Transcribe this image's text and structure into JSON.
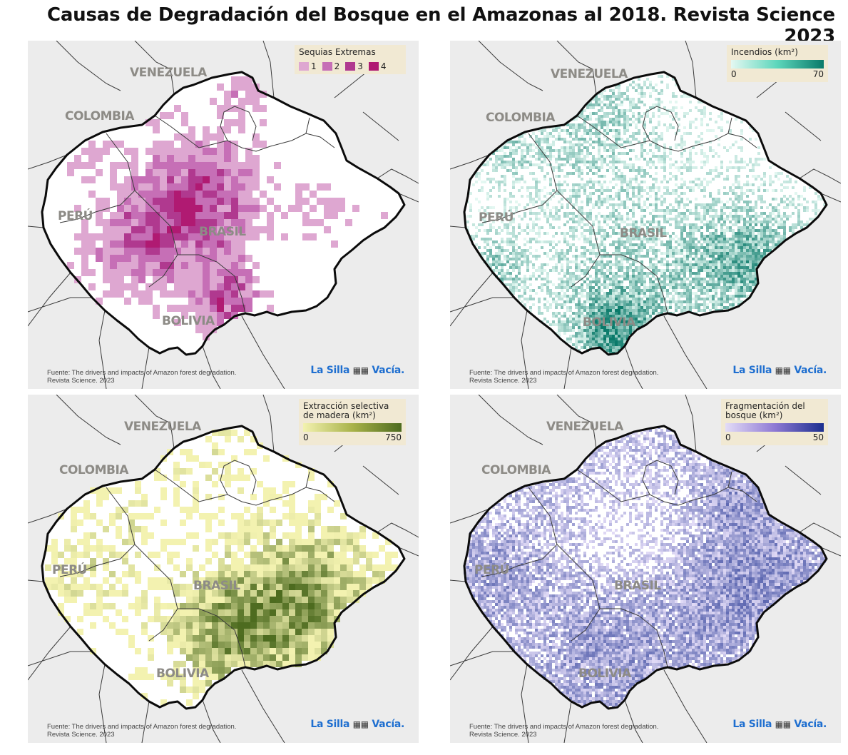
{
  "title": "Causas de Degradación del Bosque en el Amazonas al 2018. Revista Science 2023",
  "countries": {
    "venezuela": "VENEZUELA",
    "colombia": "COLOMBIA",
    "peru": "PERÚ",
    "brasil": "BRASIL",
    "bolivia": "BOLIVIA"
  },
  "source": {
    "line1": "Fuente: The drivers and impacts of Amazon forest degradation.",
    "line2": "Revista Science. 2023"
  },
  "brand": {
    "pre": "La Silla",
    "post": "Vacía.",
    "icon": "chairs-icon"
  },
  "panels": {
    "droughts": {
      "legend_title": "Sequias Extremas",
      "classes": [
        "1",
        "2",
        "3",
        "4"
      ],
      "colors": [
        "#dea7d1",
        "#c66fb6",
        "#b0398f",
        "#b01a72"
      ]
    },
    "fires": {
      "legend_title": "Incendios (km²)",
      "min": "0",
      "max": "70",
      "colors": [
        "#e4f8f2",
        "#0a7a6a"
      ]
    },
    "logging": {
      "legend_title_1": "Extracción selectiva",
      "legend_title_2": "de madera (km²)",
      "min": "0",
      "max": "750",
      "colors": [
        "#f3f2b0",
        "#4d6b1f"
      ]
    },
    "fragmentation": {
      "legend_title_1": "Fragmentación del",
      "legend_title_2": "bosque (km²)",
      "min": "0",
      "max": "50",
      "colors": [
        "#e3dcf7",
        "#1c2f8f"
      ]
    }
  }
}
